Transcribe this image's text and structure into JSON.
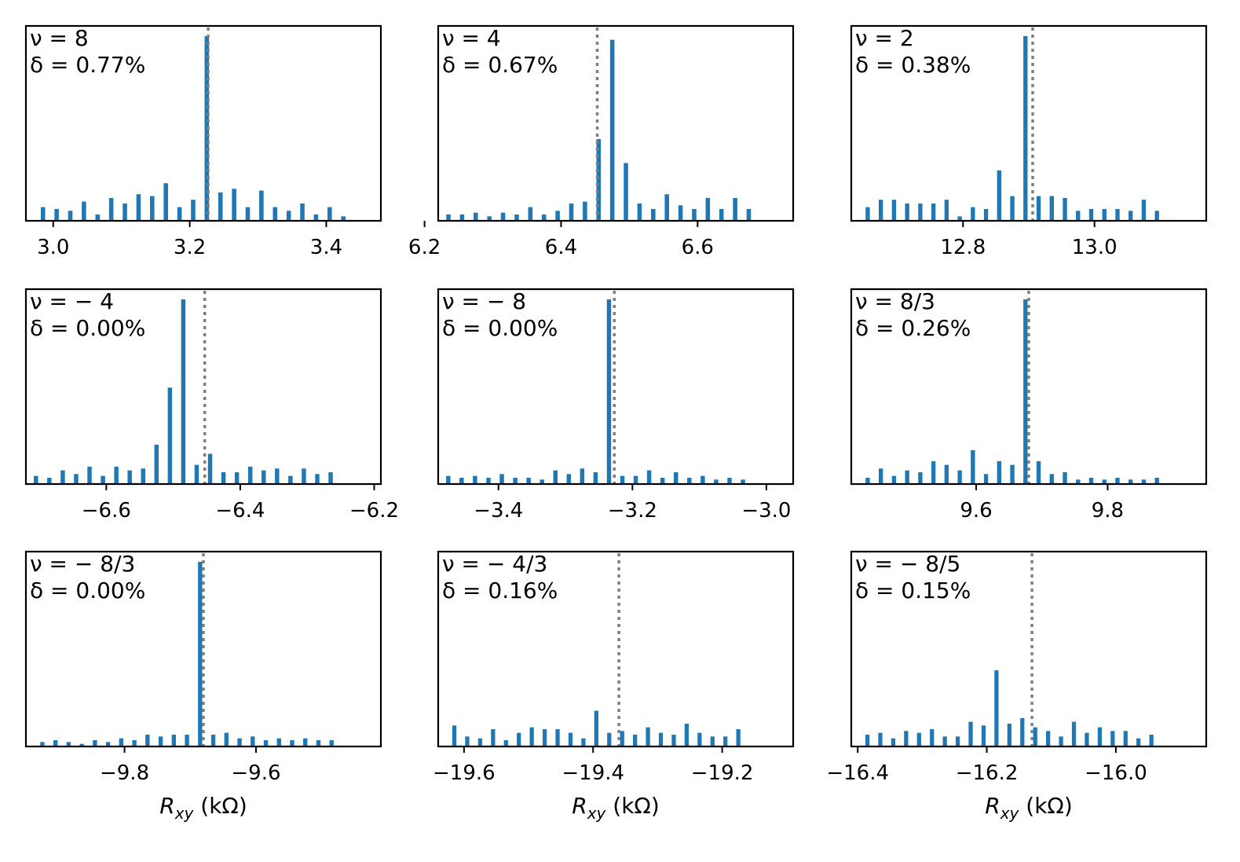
{
  "chart_data": [
    {
      "type": "bar",
      "nu": "ν = 8",
      "delta": "δ = 0.77%",
      "xlim": [
        2.96,
        3.48
      ],
      "ylim": [
        0,
        1
      ],
      "reference_x": 3.227,
      "xticks": [
        3.0,
        3.2,
        3.4
      ],
      "xtick_labels": [
        "3.0",
        "3.2",
        "3.4"
      ],
      "xlabel": "",
      "bins": [
        2.985,
        3.005,
        3.025,
        3.045,
        3.065,
        3.085,
        3.105,
        3.125,
        3.145,
        3.165,
        3.185,
        3.205,
        3.225,
        3.245,
        3.265,
        3.285,
        3.305,
        3.325,
        3.345,
        3.365,
        3.385,
        3.405,
        3.425,
        3.445,
        3.465
      ],
      "values": [
        0.07,
        0.06,
        0.05,
        0.1,
        0.03,
        0.12,
        0.09,
        0.14,
        0.13,
        0.2,
        0.07,
        0.11,
        1.0,
        0.15,
        0.17,
        0.07,
        0.16,
        0.07,
        0.05,
        0.09,
        0.03,
        0.07,
        0.02,
        0.0,
        0.0
      ]
    },
    {
      "type": "bar",
      "nu": "ν = 4",
      "delta": "δ = 0.67%",
      "xlim": [
        6.22,
        6.74
      ],
      "ylim": [
        0,
        1
      ],
      "reference_x": 6.453,
      "xticks": [
        6.2,
        6.4,
        6.6
      ],
      "xtick_labels": [
        "6.2",
        "6.4",
        "6.6"
      ],
      "xlabel": "",
      "bins": [
        6.235,
        6.255,
        6.275,
        6.295,
        6.315,
        6.335,
        6.355,
        6.375,
        6.395,
        6.415,
        6.435,
        6.455,
        6.475,
        6.495,
        6.515,
        6.535,
        6.555,
        6.575,
        6.595,
        6.615,
        6.635,
        6.655,
        6.675,
        6.695,
        6.715
      ],
      "values": [
        0.03,
        0.03,
        0.04,
        0.02,
        0.04,
        0.03,
        0.07,
        0.03,
        0.05,
        0.09,
        0.1,
        0.44,
        0.98,
        0.31,
        0.09,
        0.06,
        0.14,
        0.08,
        0.06,
        0.12,
        0.06,
        0.12,
        0.06,
        0.0,
        0.0
      ]
    },
    {
      "type": "bar",
      "nu": "ν = 2",
      "delta": "δ = 0.38%",
      "xlim": [
        12.63,
        13.17
      ],
      "ylim": [
        0,
        1
      ],
      "reference_x": 12.906,
      "xticks": [
        12.8,
        13.0
      ],
      "xtick_labels": [
        "12.8",
        "13.0"
      ],
      "xlabel": "",
      "bins": [
        12.655,
        12.675,
        12.695,
        12.715,
        12.735,
        12.755,
        12.775,
        12.795,
        12.815,
        12.835,
        12.855,
        12.875,
        12.895,
        12.915,
        12.935,
        12.955,
        12.975,
        12.995,
        13.015,
        13.035,
        13.055,
        13.075,
        13.095,
        13.115,
        13.135
      ],
      "values": [
        0.07,
        0.11,
        0.11,
        0.09,
        0.09,
        0.09,
        0.11,
        0.02,
        0.07,
        0.06,
        0.27,
        0.13,
        1.0,
        0.13,
        0.13,
        0.12,
        0.05,
        0.06,
        0.06,
        0.06,
        0.05,
        0.11,
        0.05,
        0.0,
        0.0
      ]
    },
    {
      "type": "bar",
      "nu": "ν = − 4",
      "delta": "δ = 0.00%",
      "xlim": [
        -6.72,
        -6.19
      ],
      "ylim": [
        0,
        1
      ],
      "reference_x": -6.453,
      "xticks": [
        -6.6,
        -6.4,
        -6.2
      ],
      "xtick_labels": [
        "−6.6",
        "−6.4",
        "−6.2"
      ],
      "xlabel": "",
      "bins": [
        -6.705,
        -6.685,
        -6.665,
        -6.645,
        -6.625,
        -6.605,
        -6.585,
        -6.565,
        -6.545,
        -6.525,
        -6.505,
        -6.485,
        -6.465,
        -6.445,
        -6.425,
        -6.405,
        -6.385,
        -6.365,
        -6.345,
        -6.325,
        -6.305,
        -6.285,
        -6.265,
        -6.245,
        -6.225
      ],
      "values": [
        0.04,
        0.03,
        0.07,
        0.05,
        0.09,
        0.04,
        0.09,
        0.07,
        0.08,
        0.21,
        0.52,
        1.0,
        0.1,
        0.16,
        0.06,
        0.06,
        0.09,
        0.07,
        0.08,
        0.04,
        0.08,
        0.05,
        0.06,
        0.0,
        0.0
      ]
    },
    {
      "type": "bar",
      "nu": "ν = − 8",
      "delta": "δ = 0.00%",
      "xlim": [
        -3.49,
        -2.96
      ],
      "ylim": [
        0,
        1
      ],
      "reference_x": -3.227,
      "xticks": [
        -3.4,
        -3.2,
        -3.0
      ],
      "xtick_labels": [
        "−3.4",
        "−3.2",
        "−3.0"
      ],
      "xlabel": "",
      "bins": [
        -3.475,
        -3.455,
        -3.435,
        -3.415,
        -3.395,
        -3.375,
        -3.355,
        -3.335,
        -3.315,
        -3.295,
        -3.275,
        -3.255,
        -3.235,
        -3.215,
        -3.195,
        -3.175,
        -3.155,
        -3.135,
        -3.115,
        -3.095,
        -3.075,
        -3.055,
        -3.035,
        -3.015,
        -2.995
      ],
      "values": [
        0.04,
        0.03,
        0.04,
        0.03,
        0.05,
        0.03,
        0.03,
        0.02,
        0.07,
        0.05,
        0.08,
        0.06,
        1.0,
        0.04,
        0.04,
        0.07,
        0.03,
        0.06,
        0.03,
        0.04,
        0.02,
        0.03,
        0.02,
        0.0,
        0.0
      ]
    },
    {
      "type": "bar",
      "nu": "ν = 8/3",
      "delta": "δ = 0.26%",
      "xlim": [
        9.41,
        9.95
      ],
      "ylim": [
        0,
        1
      ],
      "reference_x": 9.68,
      "xticks": [
        9.6,
        9.8
      ],
      "xtick_labels": [
        "9.6",
        "9.8"
      ],
      "xlabel": "",
      "bins": [
        9.435,
        9.455,
        9.475,
        9.495,
        9.515,
        9.535,
        9.555,
        9.575,
        9.595,
        9.615,
        9.635,
        9.655,
        9.675,
        9.695,
        9.715,
        9.735,
        9.755,
        9.775,
        9.795,
        9.815,
        9.835,
        9.855,
        9.875,
        9.895,
        9.915
      ],
      "values": [
        0.03,
        0.08,
        0.04,
        0.07,
        0.06,
        0.12,
        0.1,
        0.07,
        0.18,
        0.05,
        0.12,
        0.1,
        1.0,
        0.12,
        0.05,
        0.06,
        0.02,
        0.03,
        0.02,
        0.03,
        0.02,
        0.02,
        0.03,
        0.0,
        0.0
      ]
    },
    {
      "type": "bar",
      "nu": "ν = − 8/3",
      "delta": "δ = 0.00%",
      "xlim": [
        -9.95,
        -9.41
      ],
      "ylim": [
        0,
        1
      ],
      "reference_x": -9.68,
      "xticks": [
        -9.8,
        -9.6
      ],
      "xtick_labels": [
        "−9.8",
        "−9.6"
      ],
      "xlabel": "",
      "bins": [
        -9.925,
        -9.905,
        -9.885,
        -9.865,
        -9.845,
        -9.825,
        -9.805,
        -9.785,
        -9.765,
        -9.745,
        -9.725,
        -9.705,
        -9.685,
        -9.665,
        -9.645,
        -9.625,
        -9.605,
        -9.585,
        -9.565,
        -9.545,
        -9.525,
        -9.505,
        -9.485,
        -9.465,
        -9.445
      ],
      "values": [
        0.02,
        0.03,
        0.02,
        0.01,
        0.03,
        0.02,
        0.04,
        0.03,
        0.06,
        0.05,
        0.06,
        0.06,
        1.0,
        0.06,
        0.07,
        0.04,
        0.05,
        0.03,
        0.04,
        0.03,
        0.04,
        0.03,
        0.03,
        0.0,
        0.0
      ]
    },
    {
      "type": "bar",
      "nu": "ν = − 4/3",
      "delta": "δ = 0.16%",
      "xlim": [
        -19.64,
        -19.09
      ],
      "ylim": [
        0,
        1
      ],
      "reference_x": -19.36,
      "xticks": [
        -19.6,
        -19.4,
        -19.2
      ],
      "xtick_labels": [
        "−19.6",
        "−19.4",
        "−19.2"
      ],
      "xlabel": "",
      "bins": [
        -19.615,
        -19.595,
        -19.575,
        -19.555,
        -19.535,
        -19.515,
        -19.495,
        -19.475,
        -19.455,
        -19.435,
        -19.415,
        -19.395,
        -19.375,
        -19.355,
        -19.335,
        -19.315,
        -19.295,
        -19.275,
        -19.255,
        -19.235,
        -19.215,
        -19.195,
        -19.175,
        -19.155,
        -19.135
      ],
      "values": [
        0.11,
        0.05,
        0.04,
        0.09,
        0.03,
        0.07,
        0.1,
        0.09,
        0.09,
        0.07,
        0.04,
        0.19,
        0.07,
        0.08,
        0.06,
        0.1,
        0.07,
        0.06,
        0.12,
        0.07,
        0.05,
        0.05,
        0.09,
        0.0,
        0.0
      ]
    },
    {
      "type": "bar",
      "nu": "ν = − 8/5",
      "delta": "δ = 0.15%",
      "xlim": [
        -16.41,
        -15.86
      ],
      "ylim": [
        0,
        1
      ],
      "reference_x": -16.13,
      "xticks": [
        -16.4,
        -16.2,
        -16.0
      ],
      "xtick_labels": [
        "−16.4",
        "−16.2",
        "−16.0"
      ],
      "xlabel": "Rxy (kΩ)",
      "bins": [
        -16.385,
        -16.365,
        -16.345,
        -16.325,
        -16.305,
        -16.285,
        -16.265,
        -16.245,
        -16.225,
        -16.205,
        -16.185,
        -16.165,
        -16.145,
        -16.125,
        -16.105,
        -16.085,
        -16.065,
        -16.045,
        -16.025,
        -16.005,
        -15.985,
        -15.965,
        -15.945,
        -15.925,
        -15.905
      ],
      "values": [
        0.06,
        0.07,
        0.04,
        0.08,
        0.07,
        0.09,
        0.05,
        0.05,
        0.13,
        0.11,
        0.41,
        0.12,
        0.15,
        0.1,
        0.08,
        0.05,
        0.13,
        0.07,
        0.1,
        0.08,
        0.08,
        0.04,
        0.06,
        0.0,
        0.0
      ]
    }
  ],
  "axis_labels": {
    "xlabel_main": "R",
    "xlabel_sub": "xy",
    "xlabel_unit": " (kΩ)"
  }
}
